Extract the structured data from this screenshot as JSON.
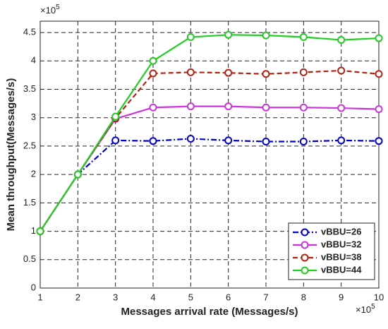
{
  "chart_data": {
    "type": "line",
    "xlabel": "Messages arrival rate (Messages/s)",
    "ylabel": "Mean throughput(Messages/s)",
    "x_exponent": {
      "base": "×10",
      "power": "5"
    },
    "y_exponent": {
      "base": "×10",
      "power": "5"
    },
    "x": [
      1,
      2,
      3,
      4,
      5,
      6,
      7,
      8,
      9,
      10
    ],
    "xlim": [
      1,
      10
    ],
    "xticks": [
      1,
      2,
      3,
      4,
      5,
      6,
      7,
      8,
      9,
      10
    ],
    "ylim": [
      0,
      4.7
    ],
    "yticks": [
      0,
      0.5,
      1,
      1.5,
      2,
      2.5,
      3,
      3.5,
      4,
      4.5
    ],
    "grid": true,
    "legend": "lower right",
    "series": [
      {
        "name": "vBBU=26",
        "color": "#0000cc",
        "dash": "dashdot",
        "values": [
          1,
          2,
          2.6,
          2.59,
          2.63,
          2.6,
          2.58,
          2.58,
          2.6,
          2.59
        ]
      },
      {
        "name": "vBBU=32",
        "color": "#cc33dd",
        "dash": "solid",
        "values": [
          1,
          2,
          2.98,
          3.18,
          3.2,
          3.2,
          3.18,
          3.18,
          3.17,
          3.15
        ]
      },
      {
        "name": "vBBU=38",
        "color": "#b22211",
        "dash": "dashed",
        "values": [
          1,
          2,
          2.99,
          3.78,
          3.8,
          3.79,
          3.77,
          3.8,
          3.83,
          3.77
        ]
      },
      {
        "name": "vBBU=44",
        "color": "#22cc22",
        "dash": "solid",
        "values": [
          1,
          2,
          3.02,
          4.0,
          4.42,
          4.46,
          4.45,
          4.42,
          4.37,
          4.4
        ]
      }
    ]
  }
}
